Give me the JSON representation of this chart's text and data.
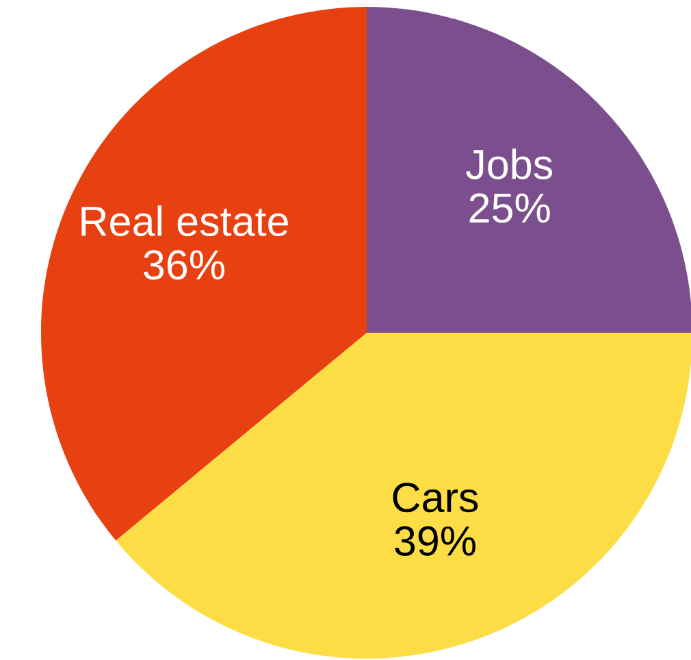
{
  "chart_data": {
    "type": "pie",
    "categories": [
      "Jobs",
      "Cars",
      "Real estate"
    ],
    "values": [
      25,
      39,
      36
    ],
    "value_labels": [
      "25%",
      "39%",
      "36%"
    ],
    "colors": [
      "#7b4f8e",
      "#fddd45",
      "#e74011"
    ]
  }
}
